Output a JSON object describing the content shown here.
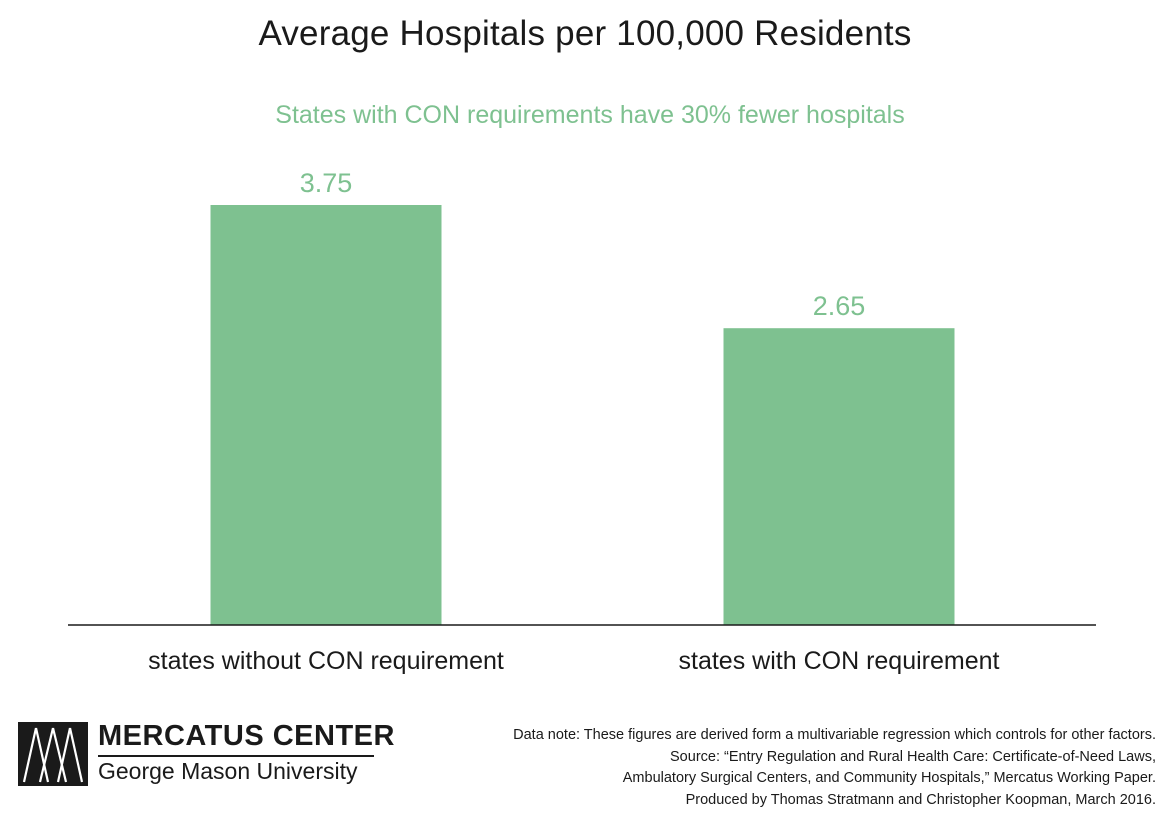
{
  "chart_data": {
    "type": "bar",
    "title": "Average Hospitals per 100,000 Residents",
    "subtitle": "States with CON requirements have 30% fewer hospitals",
    "categories": [
      "states without CON requirement",
      "states with CON requirement"
    ],
    "values": [
      3.75,
      2.65
    ],
    "value_labels": [
      "3.75",
      "2.65"
    ],
    "xlabel": "",
    "ylabel": "",
    "ylim": [
      0,
      3.75
    ],
    "grid": false,
    "legend": "none",
    "bar_color": "#7ec190",
    "label_color": "#7ec190",
    "axis_color": "#1a1a1a"
  },
  "branding": {
    "name": "MERCATUS CENTER",
    "university": "George Mason University",
    "icon": "mercatus-logo-icon"
  },
  "notes": {
    "line1": "Data note: These figures are derived form a multivariable regression which controls for other factors.",
    "line2": "Source: “Entry Regulation and Rural Health Care: Certificate-of-Need Laws,",
    "line3": "Ambulatory Surgical Centers, and Community Hospitals,” Mercatus Working Paper.",
    "line4": "Produced by Thomas Stratmann and Christopher Koopman, March 2016."
  }
}
